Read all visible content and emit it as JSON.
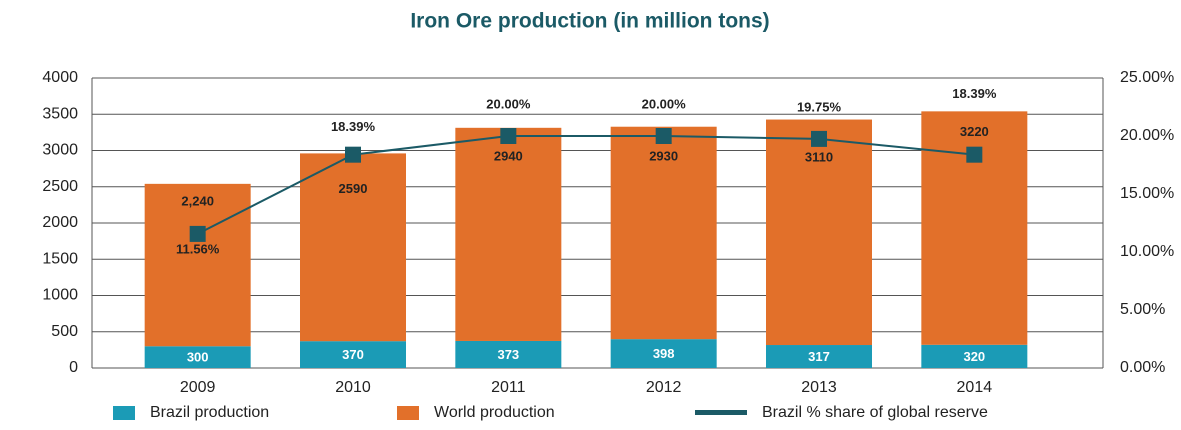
{
  "chart_data": {
    "type": "bar",
    "title": "Iron Ore production (in million tons)",
    "categories": [
      "2009",
      "2010",
      "2011",
      "2012",
      "2013",
      "2014"
    ],
    "stacked": true,
    "series": [
      {
        "name": "Brazil production",
        "color": "#1b9bb6",
        "values": [
          300,
          370,
          373,
          398,
          317,
          320
        ],
        "value_labels": [
          "300",
          "370",
          "373",
          "398",
          "317",
          "320"
        ]
      },
      {
        "name": "World production",
        "color": "#e2702a",
        "values": [
          2240,
          2590,
          2940,
          2930,
          3110,
          3220
        ],
        "value_labels": [
          "2,240",
          "2590",
          "2940",
          "2930",
          "3110",
          "3220"
        ]
      },
      {
        "name": "Brazil % share of global reserve",
        "type": "line",
        "axis": "y2",
        "color": "#1b5a66",
        "values": [
          11.56,
          18.39,
          20.0,
          20.0,
          19.75,
          18.39
        ],
        "value_labels": [
          "11.56%",
          "18.39%",
          "20.00%",
          "20.00%",
          "19.75%",
          "18.39%"
        ]
      }
    ],
    "ylim": [
      0,
      4000
    ],
    "yticks": [
      0,
      500,
      1000,
      1500,
      2000,
      2500,
      3000,
      3500,
      4000
    ],
    "y2lim": [
      0,
      25
    ],
    "y2ticks": [
      {
        "value": 0,
        "label": "0.00%"
      },
      {
        "value": 5,
        "label": "5.00%"
      },
      {
        "value": 10,
        "label": "10.00%"
      },
      {
        "value": 15,
        "label": "15.00%"
      },
      {
        "value": 20,
        "label": "20.00%"
      },
      {
        "value": 25,
        "label": "25.00%"
      }
    ],
    "grid": true,
    "legend": "bottom"
  }
}
